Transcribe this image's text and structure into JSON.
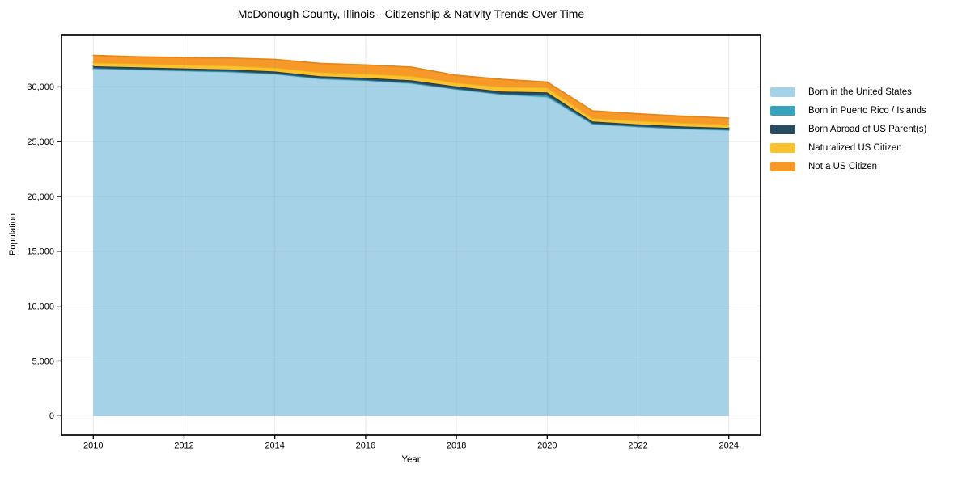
{
  "chart_data": {
    "type": "area",
    "stacked": true,
    "title": "McDonough County, Illinois - Citizenship & Nativity Trends Over Time",
    "xlabel": "Year",
    "ylabel": "Population",
    "x": [
      2010,
      2011,
      2012,
      2013,
      2014,
      2015,
      2016,
      2017,
      2018,
      2019,
      2020,
      2021,
      2022,
      2023,
      2024
    ],
    "series": [
      {
        "name": "Born in the United States",
        "color": "#a6d2e7",
        "edge": "#8cc1dd",
        "values": [
          31650,
          31540,
          31440,
          31350,
          31150,
          30720,
          30560,
          30310,
          29760,
          29290,
          29060,
          26590,
          26340,
          26150,
          26030
        ]
      },
      {
        "name": "Born in Puerto Rico / Islands",
        "color": "#38a3bd",
        "edge": "#2e8ba1",
        "values": [
          60,
          60,
          60,
          60,
          60,
          60,
          60,
          70,
          60,
          60,
          160,
          60,
          60,
          60,
          60
        ]
      },
      {
        "name": "Born Abroad of US Parent(s)",
        "color": "#2a4a5e",
        "edge": "#203d4e",
        "values": [
          170,
          180,
          180,
          180,
          190,
          190,
          200,
          220,
          220,
          230,
          270,
          190,
          190,
          180,
          170
        ]
      },
      {
        "name": "Naturalized US Citizen",
        "color": "#fcc22d",
        "edge": "#edb11b",
        "values": [
          330,
          340,
          330,
          340,
          350,
          360,
          370,
          390,
          330,
          420,
          460,
          300,
          310,
          320,
          310
        ]
      },
      {
        "name": "Not a US Citizen",
        "color": "#f79928",
        "edge": "#e6861a",
        "values": [
          660,
          620,
          660,
          690,
          750,
          800,
          800,
          810,
          680,
          680,
          490,
          670,
          640,
          610,
          580
        ]
      }
    ],
    "x_ticks": [
      2010,
      2012,
      2014,
      2016,
      2018,
      2020,
      2022,
      2024
    ],
    "y_ticks": [
      0,
      5000,
      10000,
      15000,
      20000,
      25000,
      30000
    ],
    "xlim": [
      2009.3,
      2024.7
    ],
    "ylim": [
      -1750,
      34750
    ],
    "grid": true,
    "legend_position": "right",
    "colors": {
      "spine": "#000000",
      "tick_label": "#000000",
      "grid": "#7a7f87",
      "background": "#ffffff"
    }
  }
}
